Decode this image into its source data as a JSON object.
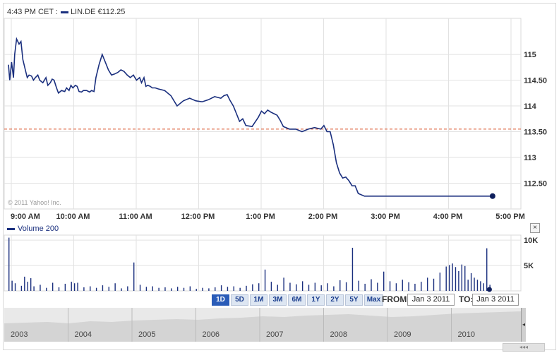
{
  "header": {
    "time": "4:43 PM CET :",
    "symbol_price": "LIN.DE €112.25"
  },
  "watermark": "© 2011 Yahoo! Inc.",
  "volume": {
    "label": "Volume",
    "value": "200",
    "close_label": "×"
  },
  "colors": {
    "line": "#1a2f7e",
    "grid": "#e2e2e2",
    "ref_line": "#d9542b",
    "volume": "#1a2f7e"
  },
  "chart_data": [
    {
      "type": "line",
      "title": "",
      "x_ticks": [
        "9:00 AM",
        "10:00 AM",
        "11:00 AM",
        "12:00 PM",
        "1:00 PM",
        "2:00 PM",
        "3:00 PM",
        "4:00 PM",
        "5:00 PM"
      ],
      "xlim_hours": [
        9.0,
        17.5
      ],
      "y_ticks": [
        "115",
        "114.50",
        "114",
        "113.50",
        "113",
        "112.50"
      ],
      "ylim": [
        112.0,
        115.7
      ],
      "reference_line": 113.55,
      "grid": true,
      "series": [
        {
          "name": "LIN.DE",
          "x": [
            9.0,
            9.02,
            9.05,
            9.08,
            9.1,
            9.13,
            9.17,
            9.2,
            9.23,
            9.27,
            9.3,
            9.33,
            9.37,
            9.4,
            9.43,
            9.47,
            9.5,
            9.55,
            9.6,
            9.63,
            9.67,
            9.7,
            9.73,
            9.77,
            9.8,
            9.85,
            9.9,
            9.93,
            9.97,
            10.0,
            10.03,
            10.07,
            10.1,
            10.13,
            10.17,
            10.2,
            10.25,
            10.3,
            10.33,
            10.37,
            10.4,
            10.45,
            10.5,
            10.55,
            10.6,
            10.65,
            10.7,
            10.75,
            10.8,
            10.85,
            10.9,
            10.95,
            11.0,
            11.05,
            11.1,
            11.13,
            11.17,
            11.2,
            11.23,
            11.27,
            11.3,
            11.35,
            11.4,
            11.5,
            11.6,
            11.7,
            11.8,
            11.9,
            12.0,
            12.1,
            12.2,
            12.3,
            12.4,
            12.45,
            12.5,
            12.55,
            12.6,
            12.65,
            12.7,
            12.75,
            12.8,
            12.9,
            13.0,
            13.05,
            13.1,
            13.15,
            13.2,
            13.25,
            13.3,
            13.35,
            13.4,
            13.5,
            13.6,
            13.7,
            13.8,
            13.9,
            14.0,
            14.05,
            14.1,
            14.15,
            14.2,
            14.25,
            14.3,
            14.35,
            14.4,
            14.45,
            14.5,
            14.55,
            14.6,
            14.7,
            14.8,
            14.9,
            15.0,
            15.05,
            15.1,
            15.15,
            15.2,
            15.3,
            15.4,
            15.5,
            15.55,
            15.6,
            15.65,
            15.7,
            15.75,
            15.8,
            15.85,
            15.9,
            15.95,
            16.0,
            16.05,
            16.1,
            16.15,
            16.2,
            16.25,
            16.3,
            16.35,
            16.4,
            16.45,
            16.5,
            16.55,
            16.6,
            16.65,
            16.7,
            16.75
          ],
          "values": [
            114.8,
            114.5,
            114.85,
            114.55,
            115.0,
            115.3,
            115.2,
            115.25,
            114.9,
            114.7,
            114.55,
            114.6,
            114.58,
            114.5,
            114.55,
            114.6,
            114.5,
            114.45,
            114.55,
            114.4,
            114.45,
            114.52,
            114.5,
            114.35,
            114.25,
            114.3,
            114.28,
            114.35,
            114.3,
            114.4,
            114.35,
            114.4,
            114.38,
            114.28,
            114.27,
            114.3,
            114.3,
            114.27,
            114.3,
            114.28,
            114.55,
            114.8,
            115.0,
            114.85,
            114.7,
            114.6,
            114.62,
            114.65,
            114.7,
            114.67,
            114.6,
            114.55,
            114.6,
            114.5,
            114.55,
            114.45,
            114.55,
            114.38,
            114.4,
            114.38,
            114.35,
            114.35,
            114.33,
            114.3,
            114.2,
            114.0,
            114.1,
            114.15,
            114.1,
            114.08,
            114.12,
            114.18,
            114.15,
            114.2,
            114.22,
            114.1,
            114.0,
            113.85,
            113.7,
            113.75,
            113.62,
            113.6,
            113.78,
            113.9,
            113.85,
            113.92,
            113.88,
            113.85,
            113.82,
            113.72,
            113.6,
            113.55,
            113.55,
            113.5,
            113.55,
            113.58,
            113.55,
            113.62,
            113.5,
            113.5,
            113.25,
            112.9,
            112.7,
            112.6,
            112.62,
            112.55,
            112.45,
            112.45,
            112.3,
            112.25,
            112.25,
            112.25,
            112.25,
            112.25,
            112.25,
            112.25,
            112.25,
            112.25,
            112.25,
            112.25,
            112.25,
            112.25,
            112.25,
            112.25,
            112.25,
            112.25,
            112.25,
            112.25,
            112.25,
            112.25,
            112.25,
            112.25,
            112.25,
            112.25,
            112.25,
            112.25,
            112.25,
            112.25,
            112.25,
            112.25,
            112.25,
            112.25,
            112.25,
            112.25,
            112.25
          ]
        }
      ]
    },
    {
      "type": "bar",
      "title": "",
      "y_ticks": [
        "10K",
        "5K"
      ],
      "ylim": [
        0,
        11000
      ],
      "series": [
        {
          "name": "Volume",
          "x": [
            9.0,
            9.05,
            9.1,
            9.2,
            9.25,
            9.3,
            9.35,
            9.4,
            9.5,
            9.6,
            9.7,
            9.8,
            9.9,
            10.0,
            10.05,
            10.1,
            10.2,
            10.3,
            10.4,
            10.5,
            10.6,
            10.7,
            10.8,
            10.9,
            11.0,
            11.1,
            11.2,
            11.3,
            11.4,
            11.5,
            11.6,
            11.7,
            11.8,
            11.9,
            12.0,
            12.1,
            12.2,
            12.3,
            12.4,
            12.5,
            12.6,
            12.7,
            12.8,
            12.9,
            13.0,
            13.1,
            13.2,
            13.3,
            13.4,
            13.5,
            13.6,
            13.7,
            13.8,
            13.9,
            14.0,
            14.1,
            14.2,
            14.3,
            14.4,
            14.5,
            14.6,
            14.7,
            14.8,
            14.9,
            15.0,
            15.1,
            15.2,
            15.3,
            15.4,
            15.5,
            15.6,
            15.7,
            15.8,
            15.9,
            16.0,
            16.05,
            16.1,
            16.15,
            16.2,
            16.25,
            16.3,
            16.35,
            16.4,
            16.45,
            16.5,
            16.55,
            16.6,
            16.65,
            16.7
          ],
          "values": [
            10500,
            2000,
            1500,
            1000,
            2800,
            1800,
            2500,
            900,
            1200,
            600,
            1600,
            700,
            1400,
            1800,
            1500,
            1600,
            700,
            900,
            600,
            1100,
            800,
            1500,
            500,
            900,
            5600,
            1200,
            800,
            900,
            600,
            700,
            500,
            800,
            600,
            900,
            400,
            600,
            500,
            700,
            1100,
            800,
            900,
            600,
            1000,
            1300,
            1500,
            4200,
            1800,
            1200,
            2600,
            1600,
            1300,
            1900,
            1200,
            1600,
            1100,
            1500,
            900,
            2100,
            1700,
            8500,
            2000,
            1400,
            2300,
            1600,
            3800,
            1900,
            1500,
            2200,
            1700,
            1400,
            1800,
            2600,
            2400,
            3600,
            4800,
            5100,
            5400,
            4700,
            3900,
            5200,
            4900,
            2200,
            3500,
            2600,
            2200,
            1900,
            1500,
            8400,
            1200
          ]
        }
      ]
    }
  ],
  "range_buttons": [
    "1D",
    "5D",
    "1M",
    "3M",
    "6M",
    "1Y",
    "2Y",
    "5Y",
    "Max"
  ],
  "active_range": "1D",
  "date_range": {
    "from_label": "FROM:",
    "from_value": "Jan 3 2011",
    "to_label": "TO:",
    "to_value": "Jan 3 2011"
  },
  "timeline_years": [
    "2003",
    "2004",
    "2005",
    "2006",
    "2007",
    "2008",
    "2009",
    "2010"
  ],
  "timeline_handle": "◂",
  "timeline_scroll": "◂◂◂"
}
